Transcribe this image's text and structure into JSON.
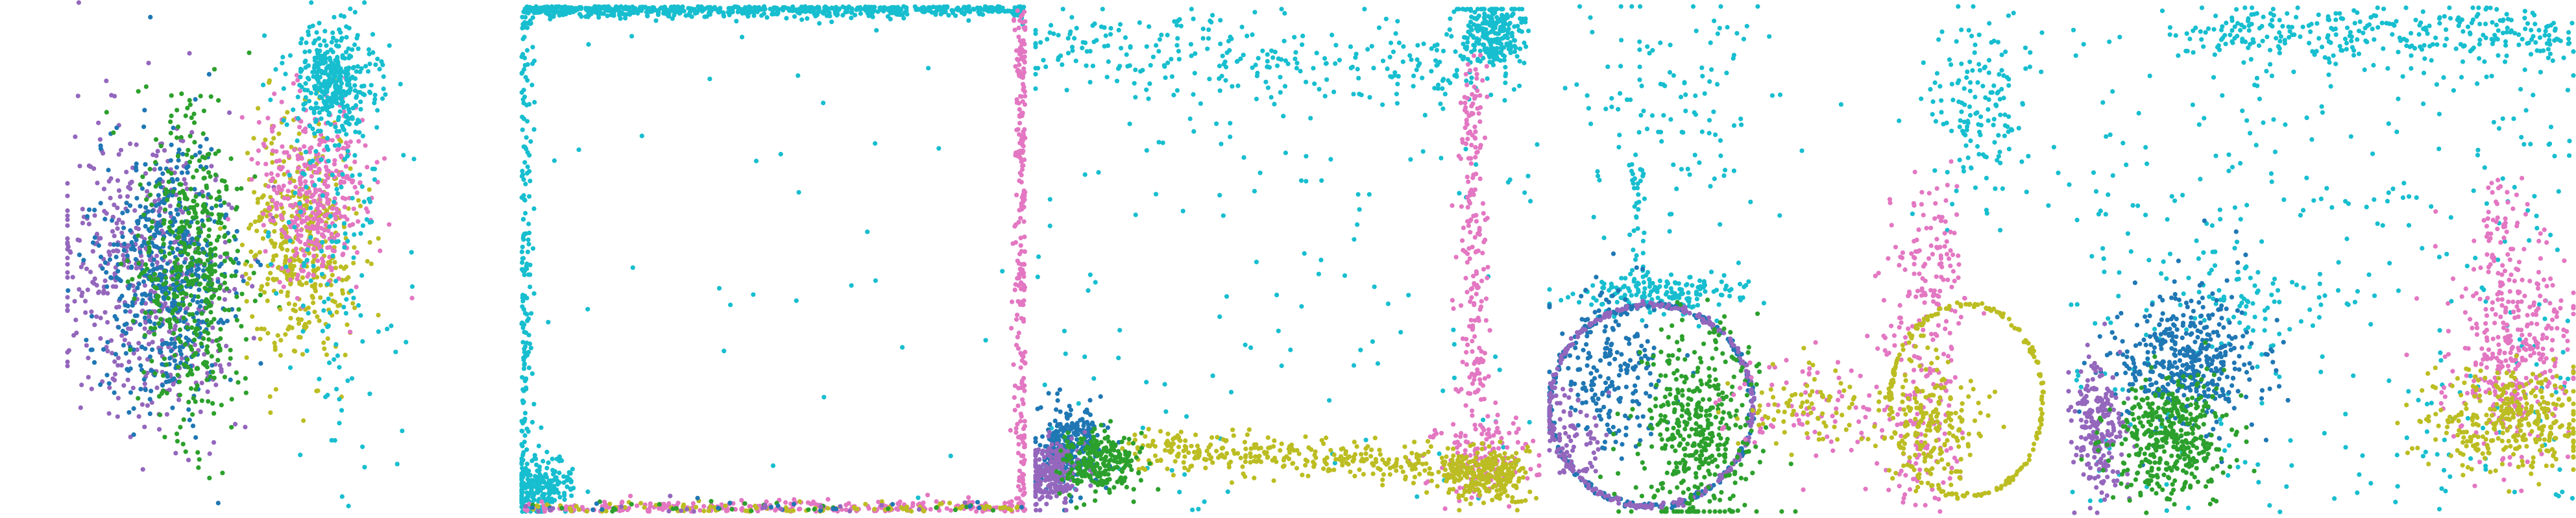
{
  "palette": {
    "purple": "#9467bd",
    "blue": "#1f77b4",
    "green": "#2ca02c",
    "olive": "#bcbd22",
    "pink": "#e377c2",
    "cyan": "#17becf"
  },
  "chart_data": [
    {
      "type": "scatter",
      "title": "",
      "xlabel": "",
      "ylabel": "",
      "grid": false,
      "axes": "hidden",
      "xlim": [
        0,
        1
      ],
      "ylim": [
        0,
        1
      ],
      "series": [
        {
          "color": "purple",
          "clusters": [
            {
              "cx": 0.18,
              "cy": 0.53,
              "sx": 0.1,
              "sy": 0.15,
              "n": 520
            }
          ]
        },
        {
          "color": "blue",
          "clusters": [
            {
              "cx": 0.22,
              "cy": 0.53,
              "sx": 0.07,
              "sy": 0.13,
              "n": 520
            }
          ]
        },
        {
          "color": "green",
          "clusters": [
            {
              "cx": 0.28,
              "cy": 0.53,
              "sx": 0.06,
              "sy": 0.15,
              "n": 480
            }
          ]
        },
        {
          "color": "olive",
          "clusters": [
            {
              "cx": 0.52,
              "cy": 0.47,
              "sx": 0.06,
              "sy": 0.12,
              "n": 420
            }
          ]
        },
        {
          "color": "pink",
          "clusters": [
            {
              "cx": 0.55,
              "cy": 0.38,
              "sx": 0.06,
              "sy": 0.09,
              "n": 380
            }
          ]
        },
        {
          "color": "cyan",
          "clusters": [
            {
              "cx": 0.59,
              "cy": 0.15,
              "sx": 0.05,
              "sy": 0.05,
              "n": 360
            },
            {
              "cx": 0.6,
              "cy": 0.45,
              "sx": 0.07,
              "sy": 0.2,
              "n": 160
            }
          ]
        }
      ]
    },
    {
      "type": "scatter",
      "title": "",
      "xlabel": "",
      "ylabel": "",
      "grid": false,
      "axes": "hidden",
      "xlim": [
        0,
        1
      ],
      "ylim": [
        0,
        1
      ],
      "series": [
        {
          "color": "cyan",
          "clusters": [
            {
              "edge": "top",
              "n": 700
            },
            {
              "edge": "left",
              "n": 180
            },
            {
              "cx": 0.04,
              "cy": 0.95,
              "sx": 0.03,
              "sy": 0.03,
              "n": 220
            },
            {
              "uniform": true,
              "n": 40
            }
          ]
        },
        {
          "color": "pink",
          "clusters": [
            {
              "edge": "right",
              "n": 260
            },
            {
              "edge": "bottom",
              "n": 260
            }
          ]
        },
        {
          "color": "olive",
          "clusters": [
            {
              "edge": "bottom",
              "n": 90
            }
          ]
        },
        {
          "color": "green",
          "clusters": [
            {
              "edge": "bottom",
              "n": 30
            }
          ]
        },
        {
          "color": "blue",
          "clusters": [
            {
              "edge": "bottom",
              "n": 20
            }
          ]
        },
        {
          "color": "purple",
          "clusters": [
            {
              "edge": "bottom",
              "n": 20
            }
          ]
        }
      ]
    },
    {
      "type": "scatter",
      "title": "",
      "xlabel": "",
      "ylabel": "",
      "grid": false,
      "axes": "hidden",
      "xlim": [
        0,
        1
      ],
      "ylim": [
        0,
        1
      ],
      "series": [
        {
          "color": "cyan",
          "clusters": [
            {
              "line": [
                0.0,
                0.07,
                0.88,
                0.12
              ],
              "spread": 0.04,
              "n": 260
            },
            {
              "cx": 0.91,
              "cy": 0.05,
              "sx": 0.03,
              "sy": 0.04,
              "n": 260
            },
            {
              "uniform": true,
              "n": 150
            }
          ]
        },
        {
          "color": "pink",
          "clusters": [
            {
              "line": [
                0.87,
                0.1,
                0.87,
                0.8
              ],
              "spread": 0.015,
              "n": 200
            },
            {
              "cx": 0.88,
              "cy": 0.9,
              "sx": 0.05,
              "sy": 0.04,
              "n": 150
            }
          ]
        },
        {
          "color": "olive",
          "clusters": [
            {
              "line": [
                0.2,
                0.88,
                0.95,
                0.92
              ],
              "spread": 0.02,
              "n": 380
            },
            {
              "cx": 0.9,
              "cy": 0.93,
              "sx": 0.04,
              "sy": 0.03,
              "n": 200
            }
          ]
        },
        {
          "color": "blue",
          "clusters": [
            {
              "cx": 0.07,
              "cy": 0.87,
              "sx": 0.03,
              "sy": 0.04,
              "n": 280
            }
          ]
        },
        {
          "color": "purple",
          "clusters": [
            {
              "cx": 0.03,
              "cy": 0.93,
              "sx": 0.025,
              "sy": 0.03,
              "n": 240
            }
          ]
        },
        {
          "color": "green",
          "clusters": [
            {
              "cx": 0.13,
              "cy": 0.9,
              "sx": 0.04,
              "sy": 0.03,
              "n": 240
            }
          ]
        }
      ]
    },
    {
      "type": "scatter",
      "title": "",
      "xlabel": "",
      "ylabel": "",
      "grid": false,
      "axes": "hidden",
      "xlim": [
        0,
        1
      ],
      "ylim": [
        0,
        1
      ],
      "series": [
        {
          "color": "cyan",
          "clusters": [
            {
              "cx": 0.25,
              "cy": 0.18,
              "sx": 0.1,
              "sy": 0.12,
              "n": 120
            },
            {
              "cx": 0.85,
              "cy": 0.22,
              "sx": 0.05,
              "sy": 0.1,
              "n": 160
            },
            {
              "cx": 0.22,
              "cy": 0.57,
              "sx": 0.08,
              "sy": 0.02,
              "n": 180
            },
            {
              "line": [
                0.17,
                0.3,
                0.18,
                0.55
              ],
              "spread": 0.01,
              "n": 40
            }
          ]
        },
        {
          "color": "blue",
          "clusters": [
            {
              "circle": [
                0.2,
                0.79,
                0.2,
                0.2
              ],
              "n": 320
            },
            {
              "cx": 0.13,
              "cy": 0.72,
              "sx": 0.05,
              "sy": 0.08,
              "n": 200
            }
          ]
        },
        {
          "color": "purple",
          "clusters": [
            {
              "circle": [
                0.2,
                0.79,
                0.2,
                0.2
              ],
              "n": 260
            },
            {
              "cx": 0.04,
              "cy": 0.85,
              "sx": 0.03,
              "sy": 0.05,
              "n": 80
            }
          ]
        },
        {
          "color": "green",
          "clusters": [
            {
              "cx": 0.29,
              "cy": 0.83,
              "sx": 0.06,
              "sy": 0.1,
              "n": 420
            }
          ]
        },
        {
          "color": "pink",
          "clusters": [
            {
              "line": [
                0.75,
                0.38,
                0.72,
                0.98
              ],
              "spread": 0.04,
              "n": 260
            },
            {
              "cx": 0.5,
              "cy": 0.8,
              "sx": 0.08,
              "sy": 0.05,
              "n": 80
            }
          ]
        },
        {
          "color": "olive",
          "clusters": [
            {
              "circle": [
                0.82,
                0.78,
                0.15,
                0.19
              ],
              "n": 200
            },
            {
              "cx": 0.75,
              "cy": 0.82,
              "sx": 0.05,
              "sy": 0.06,
              "n": 200
            },
            {
              "cx": 0.5,
              "cy": 0.8,
              "sx": 0.06,
              "sy": 0.04,
              "n": 80
            }
          ]
        }
      ]
    },
    {
      "type": "scatter",
      "title": "",
      "xlabel": "",
      "ylabel": "",
      "grid": false,
      "axes": "hidden",
      "xlim": [
        0,
        1
      ],
      "ylim": [
        0,
        1
      ],
      "series": [
        {
          "color": "cyan",
          "clusters": [
            {
              "line": [
                0.24,
                0.05,
                0.98,
                0.05
              ],
              "spread": 0.03,
              "n": 300
            },
            {
              "uniform": true,
              "n": 380
            },
            {
              "cx": 0.35,
              "cy": 0.58,
              "sx": 0.06,
              "sy": 0.04,
              "n": 60
            }
          ]
        },
        {
          "color": "blue",
          "clusters": [
            {
              "cx": 0.24,
              "cy": 0.7,
              "sx": 0.07,
              "sy": 0.07,
              "n": 420
            }
          ]
        },
        {
          "color": "purple",
          "clusters": [
            {
              "cx": 0.06,
              "cy": 0.83,
              "sx": 0.025,
              "sy": 0.06,
              "n": 220
            }
          ]
        },
        {
          "color": "green",
          "clusters": [
            {
              "cx": 0.2,
              "cy": 0.85,
              "sx": 0.06,
              "sy": 0.06,
              "n": 400
            }
          ]
        },
        {
          "color": "pink",
          "clusters": [
            {
              "cx": 0.88,
              "cy": 0.68,
              "sx": 0.06,
              "sy": 0.1,
              "n": 340
            },
            {
              "line": [
                0.85,
                0.35,
                0.85,
                0.6
              ],
              "spread": 0.02,
              "n": 60
            }
          ]
        },
        {
          "color": "olive",
          "clusters": [
            {
              "cx": 0.88,
              "cy": 0.82,
              "sx": 0.08,
              "sy": 0.05,
              "n": 340
            }
          ]
        }
      ]
    }
  ]
}
